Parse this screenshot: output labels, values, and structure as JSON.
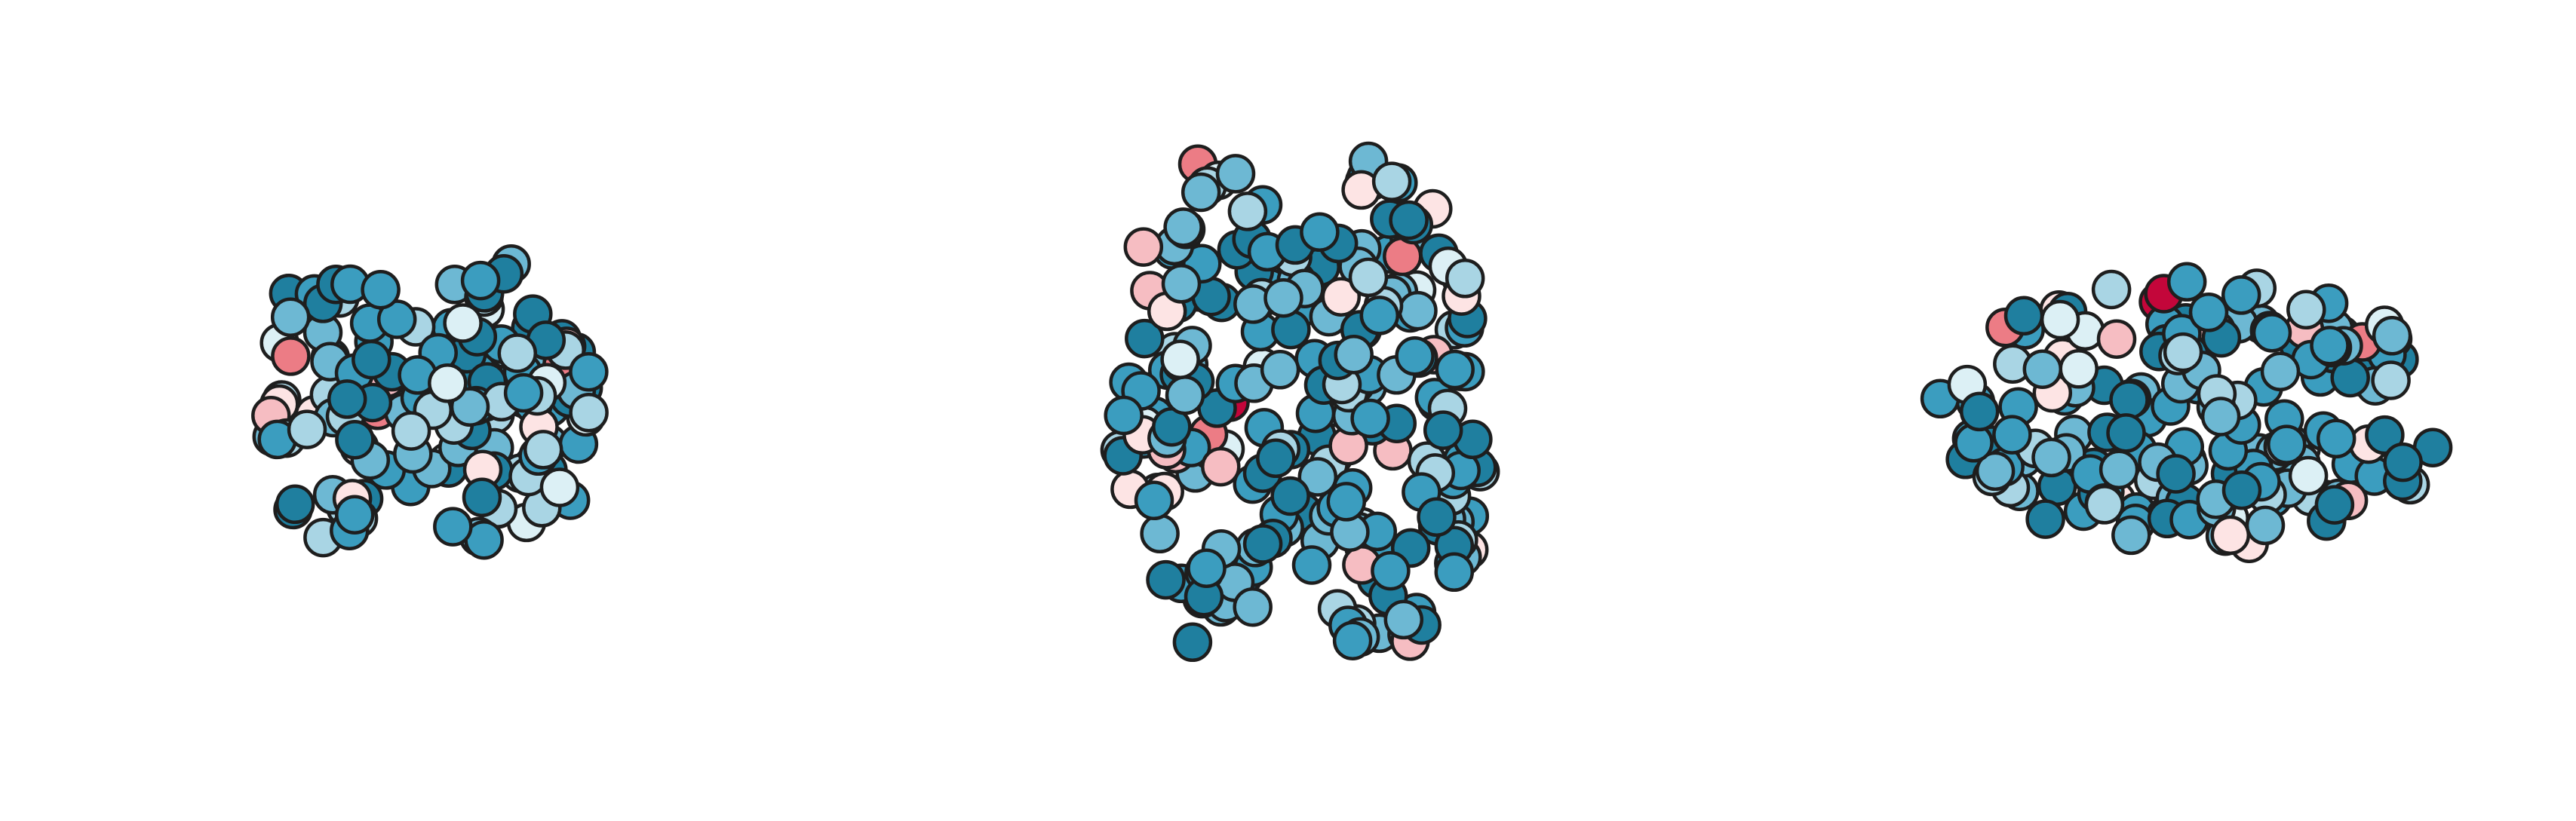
{
  "marker_colors": [
    "#1f7f9f",
    "#3b9dbf",
    "#6db8d3",
    "#a9d5e4",
    "#dcf0f5",
    "#fde4e4",
    "#f6bdc2",
    "#ec7c85",
    "#c3063a"
  ]
}
